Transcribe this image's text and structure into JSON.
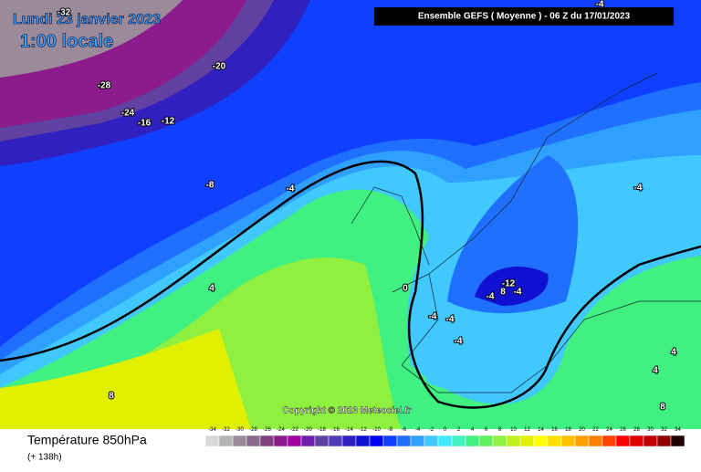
{
  "title": {
    "date": "Lundi 23 janvier 2023",
    "time": "1:00 locale"
  },
  "header": "Ensemble GEFS  ( Moyenne )  -  06 Z du 17/01/2023",
  "copyright": "Copyright © 2023 Meteociel.fr",
  "legend": {
    "title": "Température 850hPa",
    "lead_time": "(+ 138h)",
    "scale": {
      "ticks": [
        -34,
        -32,
        -30,
        -28,
        -26,
        -24,
        -22,
        -20,
        -18,
        -16,
        -14,
        -12,
        -10,
        -8,
        -6,
        -4,
        -2,
        0,
        2,
        4,
        6,
        8,
        10,
        12,
        14,
        16,
        18,
        20,
        22,
        24,
        26,
        28,
        30,
        32,
        34
      ],
      "colors": [
        "#d8d8d8",
        "#b4b4b4",
        "#9a8a9a",
        "#8a6a8a",
        "#804080",
        "#8c1c8c",
        "#a000a0",
        "#7020b0",
        "#6040a0",
        "#503cb4",
        "#3020c0",
        "#1010d0",
        "#0000f0",
        "#1040ff",
        "#2070ff",
        "#30a0ff",
        "#40c8ff",
        "#40e8ff",
        "#40f0c0",
        "#40f080",
        "#60f060",
        "#90f040",
        "#c0f020",
        "#e0f000",
        "#ffff00",
        "#ffe000",
        "#ffc000",
        "#ffa000",
        "#ff8000",
        "#ff4000",
        "#ff0000",
        "#e00000",
        "#c00000",
        "#900000",
        "#200000"
      ]
    }
  },
  "contour_labels": [
    "-32",
    "-20",
    "-28",
    "-24",
    "-16",
    "-12",
    "-8",
    "-4",
    "4",
    "8",
    "0",
    "-4",
    "-4",
    "-4",
    "-12",
    "-4",
    "8",
    "-4",
    "-4",
    "-4",
    "4",
    "4",
    "8"
  ]
}
